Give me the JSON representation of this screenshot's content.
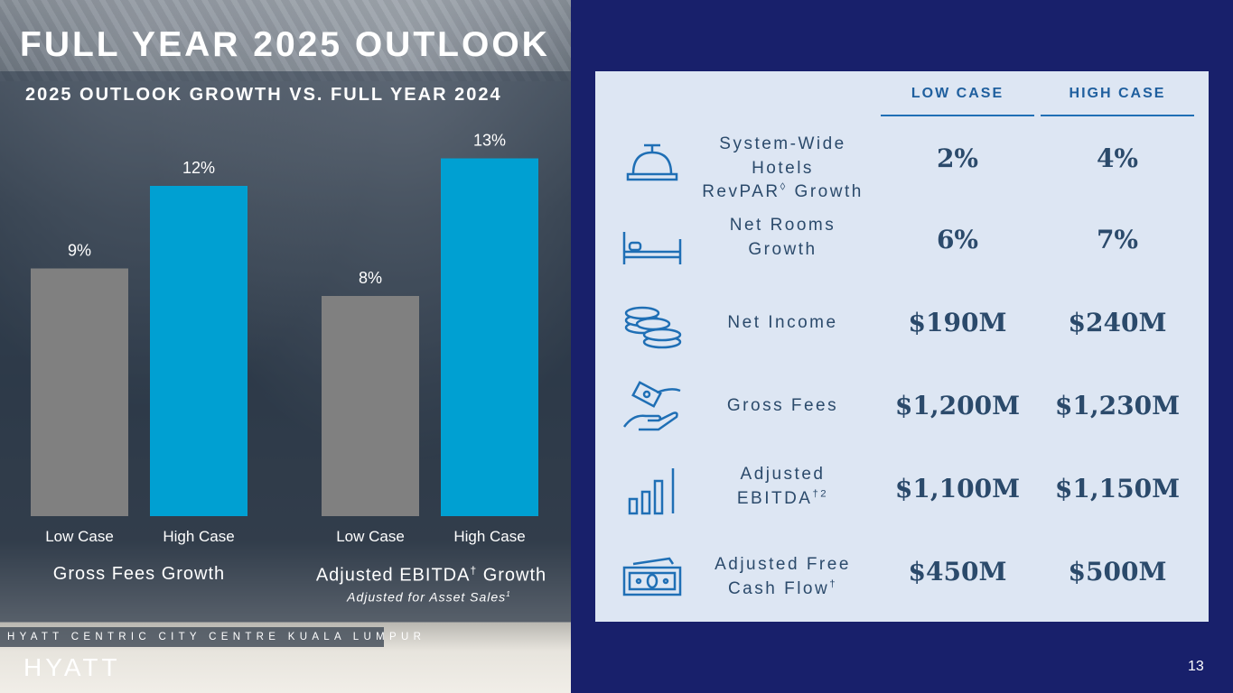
{
  "title": "FULL YEAR 2025 OUTLOOK",
  "page_number": "13",
  "location_caption": "HYATT CENTRIC CITY CENTRE KUALA LUMPUR",
  "logo_text": "HYATT",
  "colors": {
    "background": "#18206b",
    "low_bar": "#808080",
    "high_bar": "#00a0d2",
    "table_bg": "#dde6f3",
    "accent": "#1f6fb5"
  },
  "chart_data": {
    "type": "bar",
    "title": "2025 OUTLOOK GROWTH VS. FULL YEAR 2024",
    "groups": [
      {
        "label": "Gross Fees Growth",
        "label_main": "Gross Fees Growth",
        "label_sup": "",
        "label_tail": "",
        "sublabel": "",
        "categories": [
          "Low Case",
          "High Case"
        ],
        "values": [
          9,
          12
        ],
        "value_labels": [
          "9%",
          "12%"
        ]
      },
      {
        "label": "Adjusted EBITDA† Growth",
        "label_main": "Adjusted EBITDA",
        "label_sup": "†",
        "label_tail": " Growth",
        "sublabel": "Adjusted for Asset Sales",
        "sublabel_sup": "1",
        "categories": [
          "Low Case",
          "High Case"
        ],
        "values": [
          8,
          13
        ],
        "value_labels": [
          "8%",
          "13%"
        ]
      }
    ],
    "ylim": [
      0,
      13
    ],
    "grid": false,
    "legend": "none"
  },
  "table": {
    "columns": [
      "LOW CASE",
      "HIGH CASE"
    ],
    "rows": [
      {
        "icon": "service-bell-icon",
        "metric_lines": [
          "System-Wide Hotels",
          "RevPAR"
        ],
        "metric_sup": "◊",
        "metric_tail": " Growth",
        "low": "2%",
        "high": "4%"
      },
      {
        "icon": "bed-icon",
        "metric_lines": [
          "Net Rooms",
          "Growth"
        ],
        "metric_sup": "",
        "metric_tail": "",
        "low": "6%",
        "high": "7%"
      },
      {
        "icon": "coin-stacks-icon",
        "metric_lines": [
          "Net Income"
        ],
        "metric_sup": "",
        "metric_tail": "",
        "low": "$190M",
        "high": "$240M"
      },
      {
        "icon": "money-hand-icon",
        "metric_lines": [
          "Gross Fees"
        ],
        "metric_sup": "",
        "metric_tail": "",
        "low": "$1,200M",
        "high": "$1,230M"
      },
      {
        "icon": "bar-chart-icon",
        "metric_lines": [
          "Adjusted",
          "EBITDA"
        ],
        "metric_sup": "†2",
        "metric_tail": "",
        "low": "$1,100M",
        "high": "$1,150M"
      },
      {
        "icon": "cash-bills-icon",
        "metric_lines": [
          "Adjusted Free",
          "Cash Flow"
        ],
        "metric_sup": "†",
        "metric_tail": "",
        "low": "$450M",
        "high": "$500M"
      }
    ]
  }
}
